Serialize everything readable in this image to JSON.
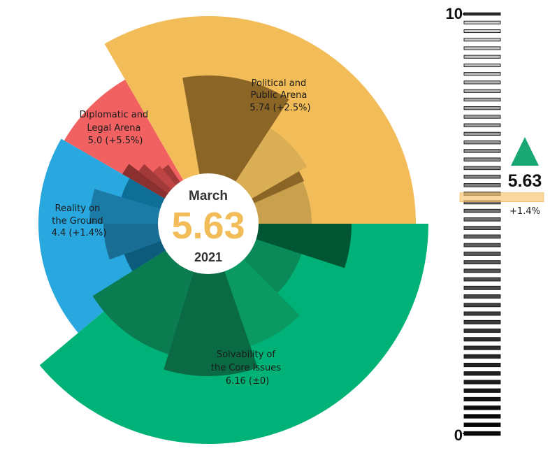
{
  "colors": {
    "political": "#F2BD59",
    "diplomatic": "#F26161",
    "reality": "#29A8E0",
    "solvability": "#00B277",
    "marker": "#F6C36B",
    "triangle": "#19A874"
  },
  "center": {
    "month": "March",
    "value": "5.63",
    "year": "2021"
  },
  "scale": {
    "top_label": "10",
    "bottom_label": "0",
    "value_label": "5.63",
    "change_label": "+1.4%",
    "value": 5.63,
    "min": 0,
    "max": 10
  },
  "chart_data": {
    "type": "radial-bar",
    "categories": [
      {
        "name": "Political and Public Arena",
        "value": 5.74,
        "change": "+2.5%",
        "value_label": "5.74 (+2.5%)"
      },
      {
        "name": "Diplomatic and Legal Arena",
        "value": 5.0,
        "change": "+5.5%",
        "value_label": "5.0 (+5.5%)"
      },
      {
        "name": "Reality on the Ground",
        "value": 4.4,
        "change": "+1.4%",
        "value_label": "4.4 (+1.4%)"
      },
      {
        "name": "Solvability of the Core Issues",
        "value": 6.16,
        "change": "±0",
        "value_label": "6.16 (±0)"
      }
    ],
    "index": {
      "month": "March",
      "year": "2021",
      "value": 5.63,
      "change": "+1.4%"
    },
    "scale_range": [
      0,
      10
    ]
  }
}
